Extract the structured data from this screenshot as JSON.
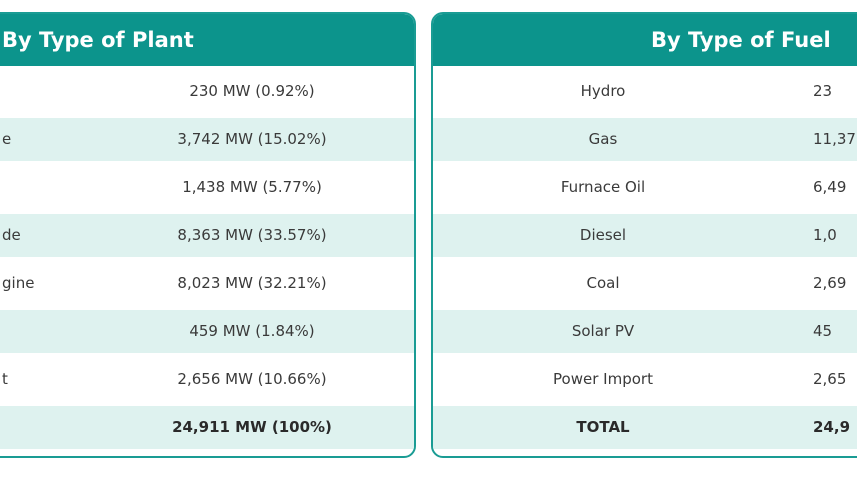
{
  "plant_table": {
    "title": "By Type of Plant",
    "rows": [
      {
        "name": "",
        "value": "230 MW (0.92%)"
      },
      {
        "name": "e",
        "value": "3,742 MW (15.02%)"
      },
      {
        "name": "",
        "value": "1,438 MW (5.77%)"
      },
      {
        "name": "de",
        "value": "8,363 MW (33.57%)"
      },
      {
        "name": "gine",
        "value": "8,023 MW (32.21%)"
      },
      {
        "name": "",
        "value": "459 MW (1.84%)"
      },
      {
        "name": "t",
        "value": "2,656 MW (10.66%)"
      }
    ],
    "total": {
      "name": "",
      "value": "24,911 MW (100%)"
    }
  },
  "fuel_table": {
    "title": "By Type of Fuel",
    "rows": [
      {
        "name": "Hydro",
        "value": "23"
      },
      {
        "name": "Gas",
        "value": "11,37"
      },
      {
        "name": "Furnace Oil",
        "value": "6,49"
      },
      {
        "name": "Diesel",
        "value": "1,0"
      },
      {
        "name": "Coal",
        "value": "2,69"
      },
      {
        "name": "Solar PV",
        "value": "45"
      },
      {
        "name": "Power Import",
        "value": "2,65"
      }
    ],
    "total": {
      "name": "TOTAL",
      "value": "24,9"
    }
  },
  "colors": {
    "header": "#0c948c",
    "border": "#1a9c94",
    "shaded_row": "#def2ef"
  }
}
